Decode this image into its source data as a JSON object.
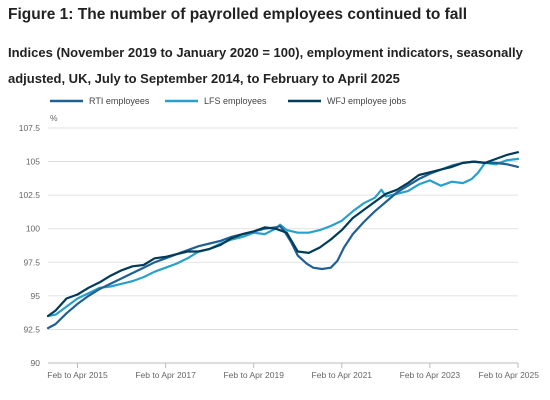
{
  "figure": {
    "title": "Figure 1: The number of payrolled employees continued to fall",
    "subtitle": "Indices (November 2019 to January 2020 = 100), employment indicators, seasonally adjusted, UK, July to September 2014, to February to April 2025"
  },
  "chart_data": {
    "type": "line",
    "title": "Figure 1: The number of payrolled employees continued to fall",
    "subtitle": "Indices (November 2019 to January 2020 = 100), employment indicators, seasonally adjusted, UK, July to September 2014, to February to April 2025",
    "ylabel": "%",
    "ylim": [
      90,
      107.5
    ],
    "yticks": [
      "90",
      "92.5",
      "95",
      "97.5",
      "100",
      "102.5",
      "105",
      "107.5"
    ],
    "xlim": [
      2014.58,
      2025.25
    ],
    "xticks": [
      {
        "label": "Feb to Apr 2015",
        "x": 2015.25
      },
      {
        "label": "Feb to Apr 2017",
        "x": 2017.25
      },
      {
        "label": "Feb to Apr 2019",
        "x": 2019.25
      },
      {
        "label": "Feb to Apr 2021",
        "x": 2021.25
      },
      {
        "label": "Feb to Apr 2023",
        "x": 2023.25
      },
      {
        "label": "Feb to Apr 2025",
        "x": 2025.25
      }
    ],
    "grid": true,
    "legend": "top-left",
    "series": [
      {
        "name": "RTI employees",
        "color": "#206095",
        "points": [
          [
            2014.58,
            92.6
          ],
          [
            2014.75,
            92.9
          ],
          [
            2015.0,
            93.7
          ],
          [
            2015.25,
            94.4
          ],
          [
            2015.5,
            95.0
          ],
          [
            2015.75,
            95.5
          ],
          [
            2016.0,
            95.9
          ],
          [
            2016.25,
            96.3
          ],
          [
            2016.5,
            96.7
          ],
          [
            2016.75,
            97.1
          ],
          [
            2017.0,
            97.5
          ],
          [
            2017.25,
            97.8
          ],
          [
            2017.5,
            98.1
          ],
          [
            2017.75,
            98.4
          ],
          [
            2018.0,
            98.7
          ],
          [
            2018.25,
            98.9
          ],
          [
            2018.5,
            99.1
          ],
          [
            2018.75,
            99.4
          ],
          [
            2019.0,
            99.6
          ],
          [
            2019.25,
            99.8
          ],
          [
            2019.5,
            100.0
          ],
          [
            2019.75,
            100.1
          ],
          [
            2019.85,
            100.2
          ],
          [
            2019.95,
            99.8
          ],
          [
            2020.1,
            99.0
          ],
          [
            2020.25,
            98.0
          ],
          [
            2020.45,
            97.4
          ],
          [
            2020.6,
            97.1
          ],
          [
            2020.8,
            97.0
          ],
          [
            2021.0,
            97.1
          ],
          [
            2021.15,
            97.6
          ],
          [
            2021.3,
            98.6
          ],
          [
            2021.5,
            99.6
          ],
          [
            2021.75,
            100.5
          ],
          [
            2022.0,
            101.3
          ],
          [
            2022.25,
            102.0
          ],
          [
            2022.5,
            102.7
          ],
          [
            2022.75,
            103.2
          ],
          [
            2023.0,
            103.7
          ],
          [
            2023.25,
            104.1
          ],
          [
            2023.5,
            104.4
          ],
          [
            2023.75,
            104.7
          ],
          [
            2024.0,
            104.9
          ],
          [
            2024.25,
            105.0
          ],
          [
            2024.5,
            104.9
          ],
          [
            2024.75,
            104.9
          ],
          [
            2025.0,
            104.8
          ],
          [
            2025.25,
            104.6
          ]
        ]
      },
      {
        "name": "LFS employees",
        "color": "#27a0cc",
        "points": [
          [
            2014.58,
            93.5
          ],
          [
            2014.75,
            93.6
          ],
          [
            2015.0,
            94.2
          ],
          [
            2015.25,
            94.8
          ],
          [
            2015.5,
            95.2
          ],
          [
            2015.75,
            95.6
          ],
          [
            2016.0,
            95.7
          ],
          [
            2016.25,
            95.9
          ],
          [
            2016.5,
            96.1
          ],
          [
            2016.75,
            96.4
          ],
          [
            2017.0,
            96.8
          ],
          [
            2017.25,
            97.1
          ],
          [
            2017.5,
            97.4
          ],
          [
            2017.75,
            97.8
          ],
          [
            2018.0,
            98.3
          ],
          [
            2018.25,
            98.5
          ],
          [
            2018.5,
            98.9
          ],
          [
            2018.75,
            99.2
          ],
          [
            2019.0,
            99.4
          ],
          [
            2019.25,
            99.7
          ],
          [
            2019.5,
            99.6
          ],
          [
            2019.75,
            100.0
          ],
          [
            2019.85,
            100.3
          ],
          [
            2020.0,
            99.9
          ],
          [
            2020.25,
            99.7
          ],
          [
            2020.5,
            99.7
          ],
          [
            2020.75,
            99.9
          ],
          [
            2021.0,
            100.2
          ],
          [
            2021.25,
            100.6
          ],
          [
            2021.5,
            101.3
          ],
          [
            2021.75,
            101.9
          ],
          [
            2022.0,
            102.3
          ],
          [
            2022.15,
            102.9
          ],
          [
            2022.25,
            102.4
          ],
          [
            2022.5,
            102.6
          ],
          [
            2022.75,
            102.8
          ],
          [
            2023.0,
            103.3
          ],
          [
            2023.25,
            103.6
          ],
          [
            2023.5,
            103.2
          ],
          [
            2023.75,
            103.5
          ],
          [
            2024.0,
            103.4
          ],
          [
            2024.2,
            103.7
          ],
          [
            2024.35,
            104.2
          ],
          [
            2024.5,
            104.9
          ],
          [
            2024.75,
            104.8
          ],
          [
            2025.0,
            105.1
          ],
          [
            2025.25,
            105.2
          ]
        ]
      },
      {
        "name": "WFJ employee jobs",
        "color": "#003c57",
        "points": [
          [
            2014.58,
            93.5
          ],
          [
            2014.75,
            93.9
          ],
          [
            2015.0,
            94.8
          ],
          [
            2015.25,
            95.1
          ],
          [
            2015.5,
            95.6
          ],
          [
            2015.75,
            96.0
          ],
          [
            2016.0,
            96.5
          ],
          [
            2016.25,
            96.9
          ],
          [
            2016.5,
            97.2
          ],
          [
            2016.75,
            97.3
          ],
          [
            2017.0,
            97.8
          ],
          [
            2017.25,
            97.9
          ],
          [
            2017.5,
            98.1
          ],
          [
            2017.75,
            98.3
          ],
          [
            2018.0,
            98.3
          ],
          [
            2018.25,
            98.5
          ],
          [
            2018.5,
            98.8
          ],
          [
            2018.75,
            99.3
          ],
          [
            2019.0,
            99.6
          ],
          [
            2019.25,
            99.8
          ],
          [
            2019.5,
            100.1
          ],
          [
            2019.75,
            100.0
          ],
          [
            2020.0,
            99.7
          ],
          [
            2020.25,
            98.3
          ],
          [
            2020.5,
            98.2
          ],
          [
            2020.75,
            98.6
          ],
          [
            2021.0,
            99.2
          ],
          [
            2021.25,
            99.9
          ],
          [
            2021.5,
            100.8
          ],
          [
            2021.75,
            101.4
          ],
          [
            2022.0,
            102.0
          ],
          [
            2022.25,
            102.6
          ],
          [
            2022.5,
            102.9
          ],
          [
            2022.75,
            103.4
          ],
          [
            2023.0,
            104.0
          ],
          [
            2023.25,
            104.2
          ],
          [
            2023.5,
            104.4
          ],
          [
            2023.75,
            104.6
          ],
          [
            2024.0,
            104.9
          ],
          [
            2024.25,
            105.0
          ],
          [
            2024.5,
            104.9
          ],
          [
            2024.75,
            105.2
          ],
          [
            2025.0,
            105.5
          ],
          [
            2025.25,
            105.7
          ]
        ]
      }
    ]
  }
}
